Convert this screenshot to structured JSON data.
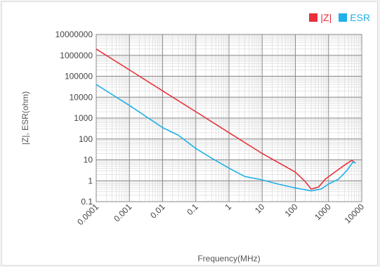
{
  "chart_data": {
    "type": "line",
    "xlabel": "Frequency(MHz)",
    "ylabel": "|Z|, ESR(ohm)",
    "xscale": "log",
    "yscale": "log",
    "xlim": [
      0.0001,
      10000
    ],
    "ylim": [
      0.1,
      10000000
    ],
    "grid": true,
    "legend_position": "top-right",
    "x_ticks": [
      "0.0001",
      "0.001",
      "0.01",
      "0.1",
      "1",
      "10",
      "100",
      "1000",
      "10000"
    ],
    "y_ticks": [
      "10000000",
      "1000000",
      "100000",
      "10000",
      "1000",
      "100",
      "10",
      "1",
      "0.1"
    ],
    "series": [
      {
        "name": "|Z|",
        "color": "#e8313b",
        "points": [
          [
            0.0001,
            2000000
          ],
          [
            0.001,
            200000
          ],
          [
            0.01,
            20000
          ],
          [
            0.1,
            2000
          ],
          [
            1,
            200
          ],
          [
            10,
            20
          ],
          [
            100,
            2.6
          ],
          [
            200,
            0.9
          ],
          [
            300,
            0.4
          ],
          [
            500,
            0.5
          ],
          [
            800,
            1.2
          ],
          [
            1500,
            2.5
          ],
          [
            3000,
            5.5
          ],
          [
            5000,
            9.5
          ],
          [
            6500,
            7
          ]
        ]
      },
      {
        "name": "ESR",
        "color": "#1fb1e8",
        "points": [
          [
            0.0001,
            40000
          ],
          [
            0.001,
            4000
          ],
          [
            0.01,
            350
          ],
          [
            0.03,
            150
          ],
          [
            0.1,
            35
          ],
          [
            0.3,
            12
          ],
          [
            1,
            4
          ],
          [
            3,
            1.6
          ],
          [
            10,
            1.1
          ],
          [
            30,
            0.7
          ],
          [
            100,
            0.45
          ],
          [
            300,
            0.33
          ],
          [
            600,
            0.4
          ],
          [
            1000,
            0.7
          ],
          [
            2000,
            1.2
          ],
          [
            3500,
            3
          ],
          [
            5500,
            8
          ],
          [
            6500,
            7
          ]
        ]
      }
    ]
  }
}
